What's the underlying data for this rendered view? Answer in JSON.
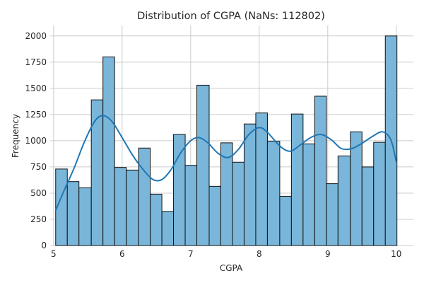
{
  "chart_data": {
    "type": "bar",
    "title": "Distribution of CGPA (NaNs: 112802)",
    "xlabel": "CGPA",
    "ylabel": "Frequency",
    "xlim": [
      4.95,
      10.25
    ],
    "ylim": [
      0,
      2100
    ],
    "grid": true,
    "colors": {
      "bar_fill": "#7ab6da",
      "bar_edge": "#111111",
      "kde_line": "#1f77b4",
      "grid": "#cccccc"
    },
    "x_ticks": [
      5,
      6,
      7,
      8,
      9,
      10
    ],
    "x_tick_labels": [
      "5",
      "6",
      "7",
      "8",
      "9",
      "10"
    ],
    "y_ticks": [
      0,
      250,
      500,
      750,
      1000,
      1250,
      1500,
      1750,
      2000
    ],
    "y_tick_labels": [
      "0",
      "250",
      "500",
      "750",
      "1000",
      "1250",
      "1500",
      "1750",
      "2000"
    ],
    "bins": {
      "edges": [
        5.03,
        5.2,
        5.37,
        5.55,
        5.72,
        5.89,
        6.06,
        6.24,
        6.41,
        6.58,
        6.75,
        6.92,
        7.09,
        7.27,
        7.44,
        7.61,
        7.78,
        7.95,
        8.12,
        8.3,
        8.47,
        8.64,
        8.81,
        8.98,
        9.15,
        9.33,
        9.5,
        9.67,
        9.84,
        10.01
      ],
      "counts": [
        730,
        610,
        550,
        1390,
        1800,
        745,
        720,
        930,
        490,
        325,
        1060,
        765,
        1530,
        565,
        980,
        795,
        1160,
        1265,
        995,
        470,
        1255,
        970,
        1425,
        590,
        855,
        1085,
        750,
        985,
        2000
      ]
    },
    "kde": {
      "x": [
        5.03,
        5.15,
        5.3,
        5.45,
        5.6,
        5.72,
        5.85,
        6.0,
        6.15,
        6.3,
        6.45,
        6.58,
        6.72,
        6.85,
        7.0,
        7.12,
        7.25,
        7.4,
        7.55,
        7.7,
        7.85,
        8.0,
        8.12,
        8.3,
        8.45,
        8.6,
        8.75,
        8.9,
        9.05,
        9.2,
        9.35,
        9.5,
        9.65,
        9.8,
        9.92,
        10.0
      ],
      "y": [
        335,
        520,
        740,
        990,
        1185,
        1240,
        1185,
        1030,
        865,
        730,
        630,
        630,
        730,
        880,
        1000,
        1030,
        980,
        880,
        840,
        920,
        1060,
        1125,
        1080,
        950,
        900,
        960,
        1030,
        1060,
        1010,
        925,
        925,
        975,
        1040,
        1085,
        1010,
        800
      ]
    }
  }
}
